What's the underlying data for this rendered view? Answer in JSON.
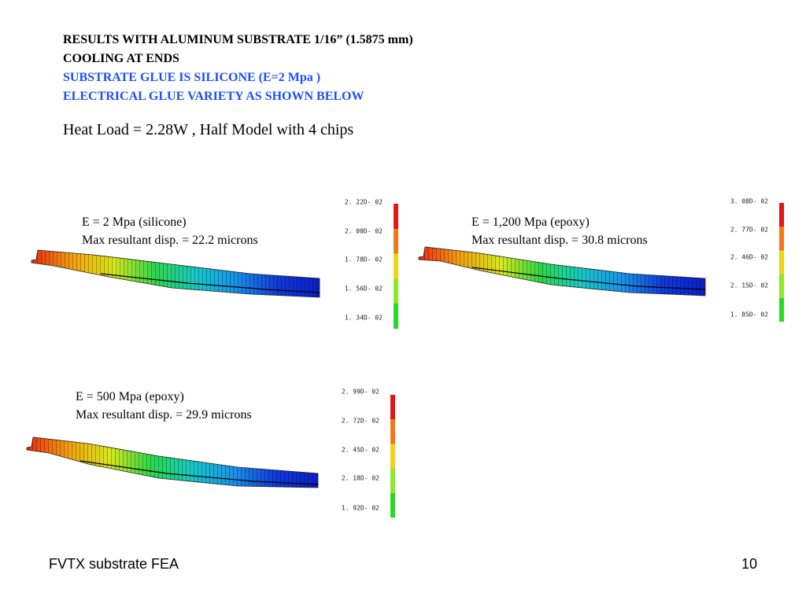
{
  "header": {
    "line1": "RESULTS WITH ALUMINUM SUBSTRATE 1/16” (1.5875 mm)",
    "line2": "COOLING AT ENDS",
    "line3": "SUBSTRATE GLUE IS SILICONE (E=2 Mpa )",
    "line4": "ELECTRICAL GLUE VARIETY AS SHOWN BELOW"
  },
  "heat_load": "Heat Load = 2.28W , Half Model with 4 chips",
  "cases": [
    {
      "modulus_label": "E = 2 Mpa (silicone)",
      "disp_label": "Max resultant disp. = 22.2 microns",
      "legend_ticks": [
        "2. 22D- 02",
        "2. 00D- 02",
        "1. 78D- 02",
        "1. 56D- 02",
        "1. 34D- 02"
      ]
    },
    {
      "modulus_label": "E = 1,200 Mpa (epoxy)",
      "disp_label": "Max resultant disp. = 30.8 microns",
      "legend_ticks": [
        "3. 08D- 02",
        "2. 77D- 02",
        "2. 46D- 02",
        "2. 15D- 02",
        "1. 85D- 02"
      ]
    },
    {
      "modulus_label": "E = 500 Mpa (epoxy)",
      "disp_label": "Max resultant disp. = 29.9 microns",
      "legend_ticks": [
        "2. 99D- 02",
        "2. 72D- 02",
        "2. 45D- 02",
        "2. 18D- 02",
        "1. 92D- 02"
      ]
    }
  ],
  "colors": {
    "title_black": "#000000",
    "title_blue": "#1a4fff",
    "legend_scale": [
      "#e01818",
      "#f07a1a",
      "#f2d21a",
      "#8ee82a",
      "#2ad82a"
    ],
    "beam_gradient": [
      "#e82a10",
      "#f2a010",
      "#d8e81a",
      "#2ad84a",
      "#18c8c8",
      "#1890e8",
      "#1038d8",
      "#0a20c8"
    ]
  },
  "footer": {
    "left": "FVTX substrate FEA",
    "page": "10"
  }
}
